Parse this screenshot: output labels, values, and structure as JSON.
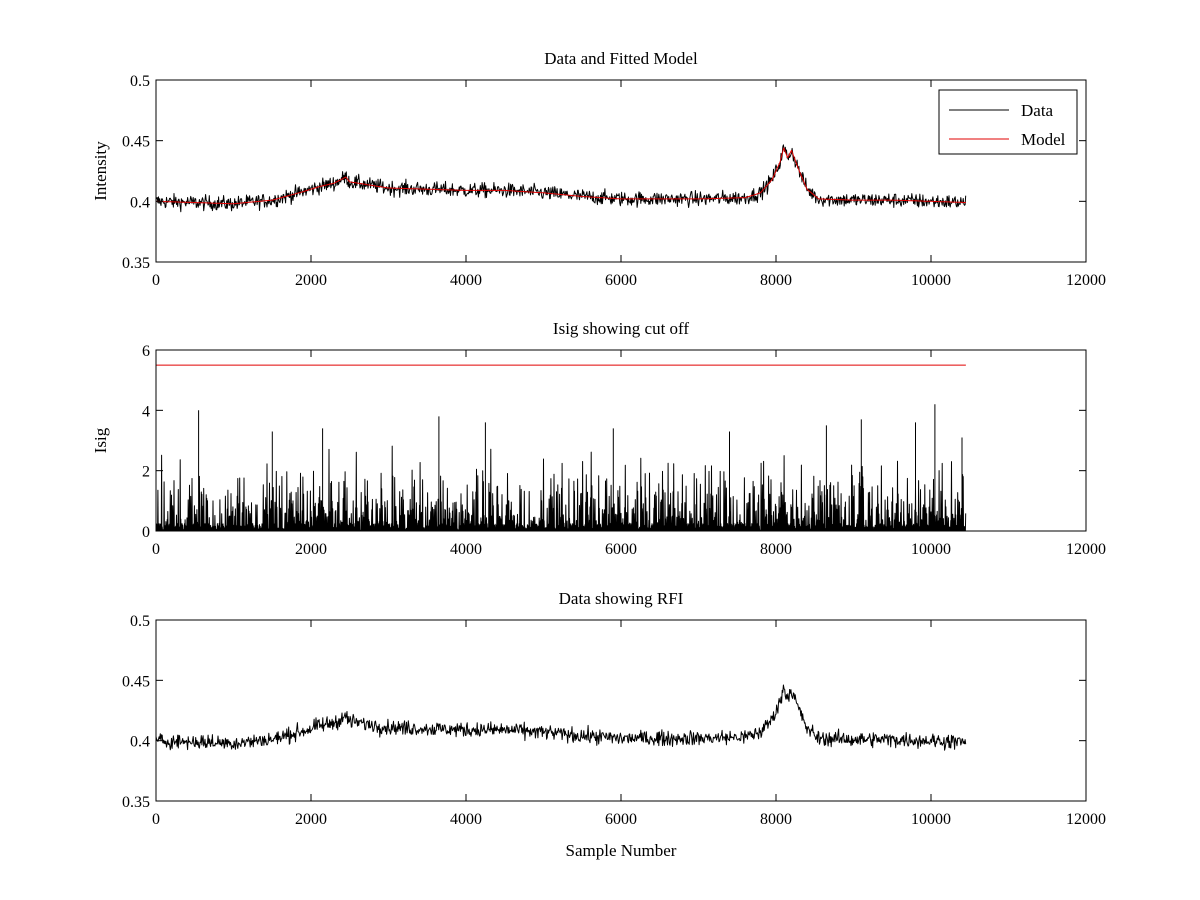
{
  "colors": {
    "data": "#000000",
    "model": "#e00000",
    "cutoff": "#e00000",
    "axes": "#000000",
    "background": "#ffffff"
  },
  "chart_data": [
    {
      "type": "line",
      "title": "Data and Fitted Model",
      "xlabel": "",
      "ylabel": "Intensity",
      "xlim": [
        0,
        12000
      ],
      "ylim": [
        0.35,
        0.5
      ],
      "xticks": [
        "0",
        "2000",
        "4000",
        "6000",
        "8000",
        "10000",
        "12000"
      ],
      "yticks": [
        "0.35",
        "0.4",
        "0.45",
        "0.5"
      ],
      "grid": false,
      "legend": {
        "position": "top-right",
        "entries": [
          "Data",
          "Model"
        ]
      },
      "series": [
        {
          "name": "Data",
          "style": "noisy",
          "noise_amplitude": 0.006,
          "x": [
            0,
            500,
            1000,
            1500,
            1900,
            2100,
            2300,
            2450,
            2500,
            3000,
            3500,
            4000,
            4500,
            5000,
            5500,
            6000,
            6500,
            7000,
            7600,
            7800,
            7950,
            8050,
            8100,
            8150,
            8200,
            8300,
            8400,
            8550,
            9000,
            9500,
            10000,
            10450
          ],
          "y": [
            0.4,
            0.399,
            0.398,
            0.401,
            0.408,
            0.412,
            0.415,
            0.42,
            0.416,
            0.411,
            0.41,
            0.409,
            0.409,
            0.407,
            0.404,
            0.402,
            0.402,
            0.402,
            0.403,
            0.407,
            0.418,
            0.432,
            0.444,
            0.436,
            0.442,
            0.425,
            0.41,
            0.402,
            0.401,
            0.401,
            0.4,
            0.399
          ]
        },
        {
          "name": "Model",
          "style": "smooth",
          "x": [
            0,
            500,
            1000,
            1500,
            1900,
            2100,
            2300,
            2450,
            2500,
            3000,
            3500,
            4000,
            4500,
            5000,
            5500,
            6000,
            6500,
            7000,
            7600,
            7800,
            7950,
            8050,
            8100,
            8150,
            8200,
            8300,
            8400,
            8550,
            9000,
            9500,
            10000,
            10450
          ],
          "y": [
            0.4,
            0.399,
            0.398,
            0.401,
            0.408,
            0.412,
            0.415,
            0.42,
            0.416,
            0.411,
            0.41,
            0.409,
            0.409,
            0.407,
            0.404,
            0.402,
            0.402,
            0.402,
            0.403,
            0.407,
            0.418,
            0.432,
            0.444,
            0.436,
            0.442,
            0.425,
            0.41,
            0.402,
            0.401,
            0.401,
            0.4,
            0.399
          ]
        }
      ]
    },
    {
      "type": "line",
      "title": "Isig showing cut off",
      "xlabel": "",
      "ylabel": "Isig",
      "xlim": [
        0,
        12000
      ],
      "ylim": [
        0,
        6
      ],
      "xticks": [
        "0",
        "2000",
        "4000",
        "6000",
        "8000",
        "10000",
        "12000"
      ],
      "yticks": [
        "0",
        "2",
        "4",
        "6"
      ],
      "grid": false,
      "series": [
        {
          "name": "Isig",
          "style": "spikes",
          "x_range": [
            0,
            10450
          ],
          "typical_max": 2.2,
          "peaks": [
            {
              "x": 550,
              "y": 4.0
            },
            {
              "x": 1500,
              "y": 3.3
            },
            {
              "x": 2150,
              "y": 3.4
            },
            {
              "x": 3650,
              "y": 3.8
            },
            {
              "x": 4250,
              "y": 3.6
            },
            {
              "x": 5900,
              "y": 3.4
            },
            {
              "x": 7400,
              "y": 3.3
            },
            {
              "x": 8650,
              "y": 3.5
            },
            {
              "x": 9100,
              "y": 3.7
            },
            {
              "x": 9800,
              "y": 3.6
            },
            {
              "x": 10050,
              "y": 4.2
            },
            {
              "x": 10400,
              "y": 3.1
            }
          ]
        },
        {
          "name": "Cut off",
          "style": "flat",
          "x": [
            0,
            10450
          ],
          "y": [
            5.5,
            5.5
          ]
        }
      ]
    },
    {
      "type": "line",
      "title": "Data showing RFI",
      "xlabel": "Sample Number",
      "ylabel": "",
      "xlim": [
        0,
        12000
      ],
      "ylim": [
        0.35,
        0.5
      ],
      "xticks": [
        "0",
        "2000",
        "4000",
        "6000",
        "8000",
        "10000",
        "12000"
      ],
      "yticks": [
        "0.35",
        "0.4",
        "0.45",
        "0.5"
      ],
      "grid": false,
      "series": [
        {
          "name": "Data",
          "style": "noisy",
          "noise_amplitude": 0.006,
          "x": [
            0,
            500,
            1000,
            1500,
            1900,
            2100,
            2300,
            2450,
            2500,
            3000,
            3500,
            4000,
            4500,
            5000,
            5500,
            6000,
            6500,
            7000,
            7600,
            7800,
            7950,
            8050,
            8100,
            8150,
            8200,
            8300,
            8400,
            8550,
            9000,
            9500,
            10000,
            10450
          ],
          "y": [
            0.4,
            0.399,
            0.398,
            0.401,
            0.408,
            0.412,
            0.415,
            0.42,
            0.416,
            0.411,
            0.41,
            0.409,
            0.409,
            0.407,
            0.404,
            0.402,
            0.402,
            0.402,
            0.403,
            0.407,
            0.418,
            0.432,
            0.444,
            0.436,
            0.442,
            0.425,
            0.41,
            0.402,
            0.401,
            0.401,
            0.4,
            0.399
          ]
        }
      ]
    }
  ]
}
